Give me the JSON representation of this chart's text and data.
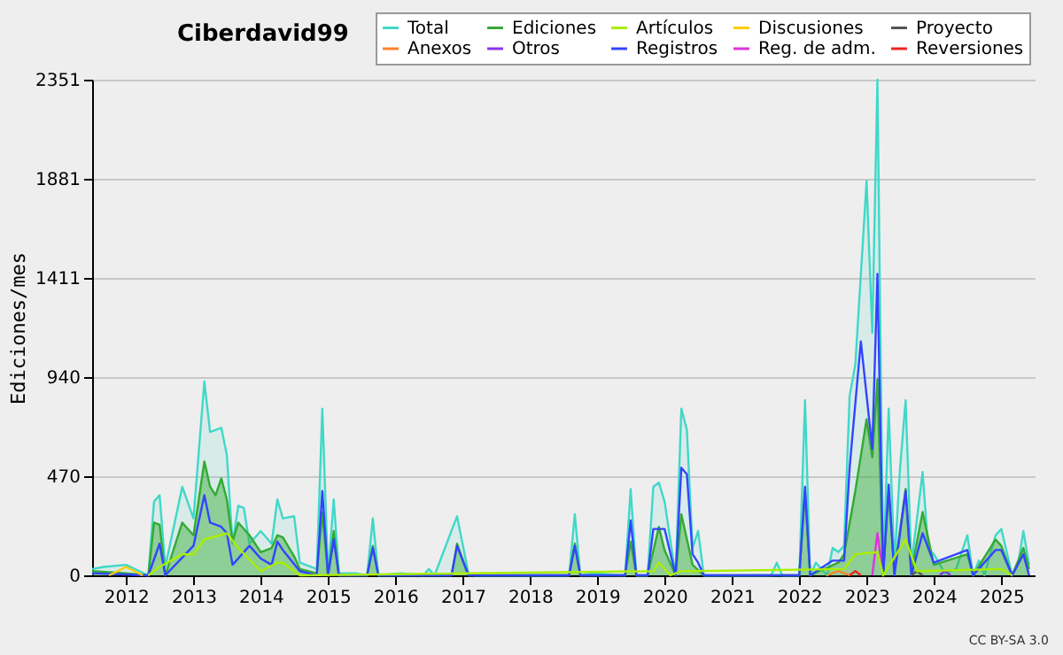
{
  "chart_data": {
    "type": "line",
    "title": "Ciberdavid99",
    "ylabel": "Ediciones/mes",
    "annotations": [
      "CC BY-SA 3.0"
    ],
    "xlim": [
      "2011-07",
      "2025-07"
    ],
    "xticks": [
      "2012",
      "2013",
      "2014",
      "2015",
      "2016",
      "2017",
      "2018",
      "2019",
      "2020",
      "2021",
      "2022",
      "2023",
      "2024",
      "2025"
    ],
    "ylim": [
      0,
      2351
    ],
    "yticks": [
      0,
      470,
      940,
      1411,
      1881,
      2351
    ],
    "grid": "y",
    "legend": "top right",
    "series": [
      {
        "name": "Total",
        "type": "area",
        "color": "#40d8c8",
        "x": [
          "2011-07",
          "2011-09",
          "2012-01",
          "2012-05",
          "2012-06",
          "2012-07",
          "2012-08",
          "2012-11",
          "2013-01",
          "2013-03",
          "2013-04",
          "2013-06",
          "2013-07",
          "2013-08",
          "2013-09",
          "2013-10",
          "2013-11",
          "2014-01",
          "2014-03",
          "2014-04",
          "2014-05",
          "2014-07",
          "2014-08",
          "2014-11",
          "2014-12",
          "2015-01",
          "2015-02",
          "2015-03",
          "2015-06",
          "2015-08",
          "2015-09",
          "2015-10",
          "2016-02",
          "2016-06",
          "2016-07",
          "2016-08",
          "2016-12",
          "2017-02",
          "2017-03",
          "2018-08",
          "2018-09",
          "2018-10",
          "2018-12",
          "2019-06",
          "2019-07",
          "2019-08",
          "2019-10",
          "2019-11",
          "2019-12",
          "2020-01",
          "2020-03",
          "2020-04",
          "2020-05",
          "2020-06",
          "2020-07",
          "2020-08",
          "2021-08",
          "2021-09",
          "2021-10",
          "2022-01",
          "2022-02",
          "2022-03",
          "2022-04",
          "2022-06",
          "2022-07",
          "2022-08",
          "2022-09",
          "2022-10",
          "2022-11",
          "2023-01",
          "2023-02",
          "2023-03",
          "2023-04",
          "2023-05",
          "2023-06",
          "2023-07",
          "2023-08",
          "2023-09",
          "2023-11",
          "2023-12",
          "2024-01",
          "2024-03",
          "2024-05",
          "2024-07",
          "2024-08",
          "2024-09",
          "2024-10",
          "2024-12",
          "2025-01",
          "2025-03",
          "2025-04",
          "2025-05",
          "2025-06"
        ],
        "values": [
          30,
          40,
          50,
          0,
          350,
          380,
          40,
          420,
          270,
          920,
          680,
          700,
          570,
          150,
          330,
          320,
          150,
          210,
          150,
          360,
          270,
          280,
          60,
          30,
          790,
          0,
          360,
          10,
          10,
          0,
          270,
          0,
          10,
          0,
          30,
          0,
          280,
          10,
          0,
          0,
          290,
          0,
          10,
          0,
          410,
          0,
          0,
          420,
          440,
          350,
          0,
          790,
          690,
          130,
          210,
          0,
          0,
          60,
          0,
          0,
          830,
          0,
          60,
          0,
          130,
          110,
          140,
          850,
          1000,
          1870,
          1150,
          2351,
          0,
          790,
          50,
          500,
          830,
          50,
          490,
          130,
          100,
          10,
          30,
          190,
          0,
          70,
          0,
          190,
          220,
          0,
          50,
          210,
          50
        ]
      },
      {
        "name": "Ediciones",
        "type": "area",
        "color": "#33aa33",
        "x": [
          "2011-07",
          "2012-01",
          "2012-05",
          "2012-06",
          "2012-07",
          "2012-08",
          "2012-11",
          "2013-01",
          "2013-03",
          "2013-04",
          "2013-05",
          "2013-06",
          "2013-07",
          "2013-08",
          "2013-09",
          "2013-11",
          "2014-01",
          "2014-03",
          "2014-04",
          "2014-05",
          "2014-07",
          "2014-08",
          "2014-11",
          "2014-12",
          "2015-01",
          "2015-02",
          "2015-03",
          "2015-08",
          "2015-09",
          "2015-10",
          "2016-11",
          "2016-12",
          "2017-02",
          "2018-08",
          "2018-09",
          "2018-10",
          "2019-06",
          "2019-07",
          "2019-08",
          "2019-10",
          "2019-12",
          "2020-01",
          "2020-03",
          "2020-04",
          "2020-06",
          "2020-08",
          "2022-01",
          "2022-02",
          "2022-03",
          "2022-08",
          "2022-09",
          "2022-11",
          "2023-01",
          "2023-02",
          "2023-03",
          "2023-04",
          "2023-05",
          "2023-06",
          "2023-08",
          "2023-09",
          "2023-11",
          "2024-01",
          "2024-07",
          "2024-08",
          "2024-12",
          "2025-01",
          "2025-03",
          "2025-05",
          "2025-06"
        ],
        "values": [
          20,
          10,
          0,
          250,
          240,
          0,
          250,
          190,
          540,
          420,
          380,
          460,
          360,
          160,
          250,
          190,
          110,
          130,
          190,
          180,
          90,
          30,
          10,
          300,
          0,
          210,
          0,
          0,
          140,
          0,
          0,
          150,
          0,
          0,
          150,
          0,
          0,
          160,
          0,
          0,
          230,
          120,
          0,
          290,
          50,
          0,
          0,
          400,
          0,
          60,
          100,
          400,
          740,
          560,
          930,
          0,
          400,
          20,
          410,
          20,
          300,
          50,
          100,
          0,
          170,
          140,
          0,
          130,
          30
        ]
      },
      {
        "name": "Artículos",
        "type": "line",
        "color": "#aaee00",
        "x": [
          "2012-05",
          "2012-07",
          "2012-11",
          "2013-01",
          "2013-03",
          "2013-07",
          "2013-09",
          "2014-01",
          "2014-04",
          "2014-05",
          "2014-08",
          "2019-11",
          "2019-12",
          "2020-02",
          "2020-04",
          "2020-06",
          "2022-09",
          "2022-11",
          "2023-03",
          "2023-04",
          "2023-08",
          "2023-10",
          "2025-01",
          "2025-03"
        ],
        "values": [
          0,
          40,
          100,
          100,
          170,
          200,
          130,
          20,
          60,
          60,
          0,
          20,
          60,
          0,
          20,
          20,
          30,
          100,
          110,
          0,
          170,
          20,
          30,
          0
        ]
      },
      {
        "name": "Discusiones",
        "type": "line",
        "color": "#ffcc00",
        "x": [
          "2011-10",
          "2012-01",
          "2012-04"
        ],
        "values": [
          0,
          40,
          0
        ]
      },
      {
        "name": "Proyecto",
        "type": "line",
        "color": "#555555",
        "x": [
          "2023-09",
          "2023-10",
          "2023-11"
        ],
        "values": [
          0,
          20,
          0
        ]
      },
      {
        "name": "Anexos",
        "type": "line",
        "color": "#ff7f2a",
        "x": [
          "2022-06",
          "2022-08",
          "2022-10"
        ],
        "values": [
          0,
          20,
          0
        ]
      },
      {
        "name": "Otros",
        "type": "line",
        "color": "#8833ee",
        "x": [
          "2024-02",
          "2024-03",
          "2024-04"
        ],
        "values": [
          0,
          20,
          0
        ]
      },
      {
        "name": "Registros",
        "type": "line",
        "color": "#3344ff",
        "x": [
          "2011-07",
          "2012-05",
          "2012-07",
          "2012-08",
          "2013-01",
          "2013-03",
          "2013-04",
          "2013-06",
          "2013-07",
          "2013-08",
          "2013-11",
          "2014-01",
          "2014-03",
          "2014-04",
          "2014-05",
          "2014-08",
          "2014-11",
          "2014-12",
          "2015-01",
          "2015-02",
          "2015-03",
          "2015-08",
          "2015-09",
          "2015-10",
          "2016-11",
          "2016-12",
          "2017-02",
          "2018-08",
          "2018-09",
          "2018-10",
          "2019-06",
          "2019-07",
          "2019-08",
          "2019-10",
          "2019-11",
          "2020-01",
          "2020-03",
          "2020-04",
          "2020-05",
          "2020-06",
          "2020-07",
          "2020-08",
          "2022-01",
          "2022-02",
          "2022-03",
          "2022-07",
          "2022-09",
          "2022-10",
          "2022-12",
          "2023-02",
          "2023-03",
          "2023-04",
          "2023-05",
          "2023-06",
          "2023-08",
          "2023-09",
          "2023-11",
          "2024-01",
          "2024-07",
          "2024-08",
          "2024-12",
          "2025-01",
          "2025-03",
          "2025-05",
          "2025-06"
        ],
        "values": [
          10,
          0,
          150,
          0,
          140,
          380,
          250,
          230,
          200,
          50,
          140,
          80,
          50,
          160,
          120,
          20,
          0,
          400,
          0,
          170,
          0,
          0,
          130,
          0,
          0,
          140,
          0,
          0,
          140,
          0,
          0,
          260,
          0,
          0,
          220,
          220,
          0,
          510,
          480,
          100,
          60,
          0,
          0,
          420,
          0,
          70,
          70,
          510,
          1110,
          600,
          1430,
          0,
          430,
          0,
          400,
          0,
          200,
          60,
          120,
          0,
          120,
          120,
          0,
          100,
          0
        ]
      },
      {
        "name": "Reg. de adm.",
        "type": "line",
        "color": "#dd33dd",
        "x": [
          "2023-02",
          "2023-03",
          "2023-04"
        ],
        "values": [
          0,
          200,
          0
        ]
      },
      {
        "name": "Reversiones",
        "type": "line",
        "color": "#ee2222",
        "x": [
          "2022-10",
          "2022-11",
          "2022-12"
        ],
        "values": [
          0,
          20,
          0
        ]
      }
    ]
  }
}
